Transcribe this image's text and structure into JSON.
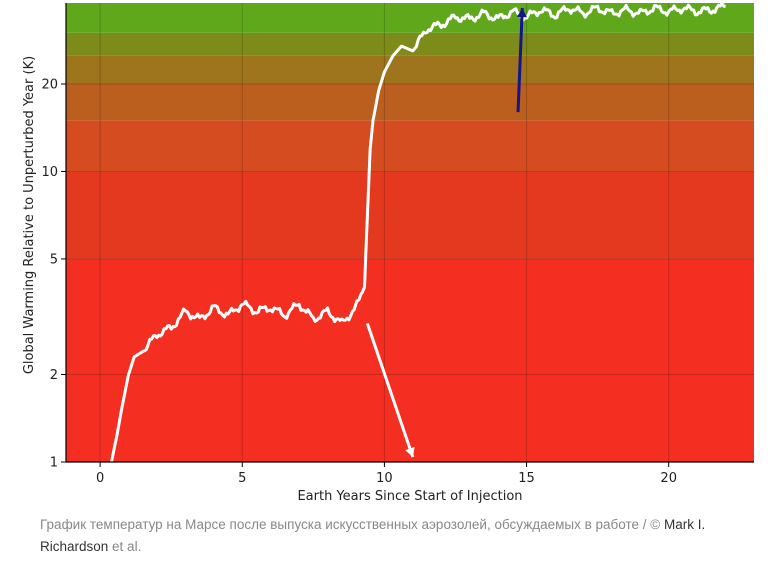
{
  "chart_data": {
    "type": "line",
    "xlabel": "Earth Years Since Start of Injection",
    "ylabel": "Global Warming Relative to Unperturbed Year (K)",
    "yscale": "log",
    "xlim": [
      -1.2,
      23
    ],
    "ylim": [
      1,
      38
    ],
    "xticks": [
      0,
      5,
      10,
      15,
      20
    ],
    "yticks": [
      1,
      2,
      5,
      10,
      20
    ],
    "grid": true,
    "background_bands": [
      {
        "from": 1,
        "to": 5,
        "color": "#f42e21"
      },
      {
        "from": 5,
        "to": 10,
        "color": "#e4381f"
      },
      {
        "from": 10,
        "to": 15,
        "color": "#d44c20"
      },
      {
        "from": 15,
        "to": 20,
        "color": "#bb5f1f"
      },
      {
        "from": 20,
        "to": 25,
        "color": "#9e741c"
      },
      {
        "from": 25,
        "to": 30,
        "color": "#7c8b19"
      },
      {
        "from": 30,
        "to": 38,
        "color": "#5fa81c"
      }
    ],
    "series": [
      {
        "color": "#ffffff",
        "x": [
          0.4,
          0.6,
          0.8,
          1.0,
          1.2,
          1.5,
          2.0,
          2.5,
          3.0,
          3.5,
          4.0,
          4.5,
          5.0,
          5.5,
          6.0,
          6.5,
          7.0,
          7.5,
          8.0,
          8.5,
          9.0,
          9.3,
          9.4,
          9.5,
          9.6,
          9.8,
          10.0,
          10.3,
          10.6,
          11.0,
          11.5,
          12.0,
          12.5,
          13.0,
          13.5,
          14.0,
          14.5,
          15.0,
          15.5,
          16.0,
          16.5,
          17.0,
          17.5,
          18.0,
          18.5,
          19.0,
          19.5,
          20.0,
          20.5,
          21.0,
          21.5,
          22.0
        ],
        "y": [
          1.0,
          1.25,
          1.6,
          2.0,
          2.3,
          2.4,
          2.75,
          2.9,
          3.3,
          3.1,
          3.4,
          3.2,
          3.5,
          3.3,
          3.4,
          3.2,
          3.5,
          3.1,
          3.3,
          3.0,
          3.4,
          4.0,
          7.0,
          12.0,
          15.0,
          19.0,
          22.0,
          25.0,
          27.0,
          26.0,
          31.0,
          32.0,
          34.0,
          33.5,
          35.0,
          33.5,
          35.5,
          34.0,
          36.0,
          34.5,
          36.5,
          35.0,
          36.5,
          35.0,
          36.0,
          35.0,
          36.5,
          35.5,
          36.5,
          35.5,
          36.0,
          37.0
        ]
      }
    ],
    "arrows": [
      {
        "color": "#ffffff",
        "from": {
          "x": 9.4,
          "y": 3.0
        },
        "to": {
          "x": 11.0,
          "y": 1.04
        }
      },
      {
        "color": "#14148c",
        "from": {
          "x": 14.7,
          "y": 16.0
        },
        "to": {
          "x": 14.85,
          "y": 36.5
        }
      }
    ]
  },
  "caption": {
    "text": "График температур на Марсе после выпуска искусственных аэрозолей, обсуждаемых в работе / © ",
    "credit1": "Mark I.",
    "credit2": "Richardson",
    "suffix": " et al."
  }
}
